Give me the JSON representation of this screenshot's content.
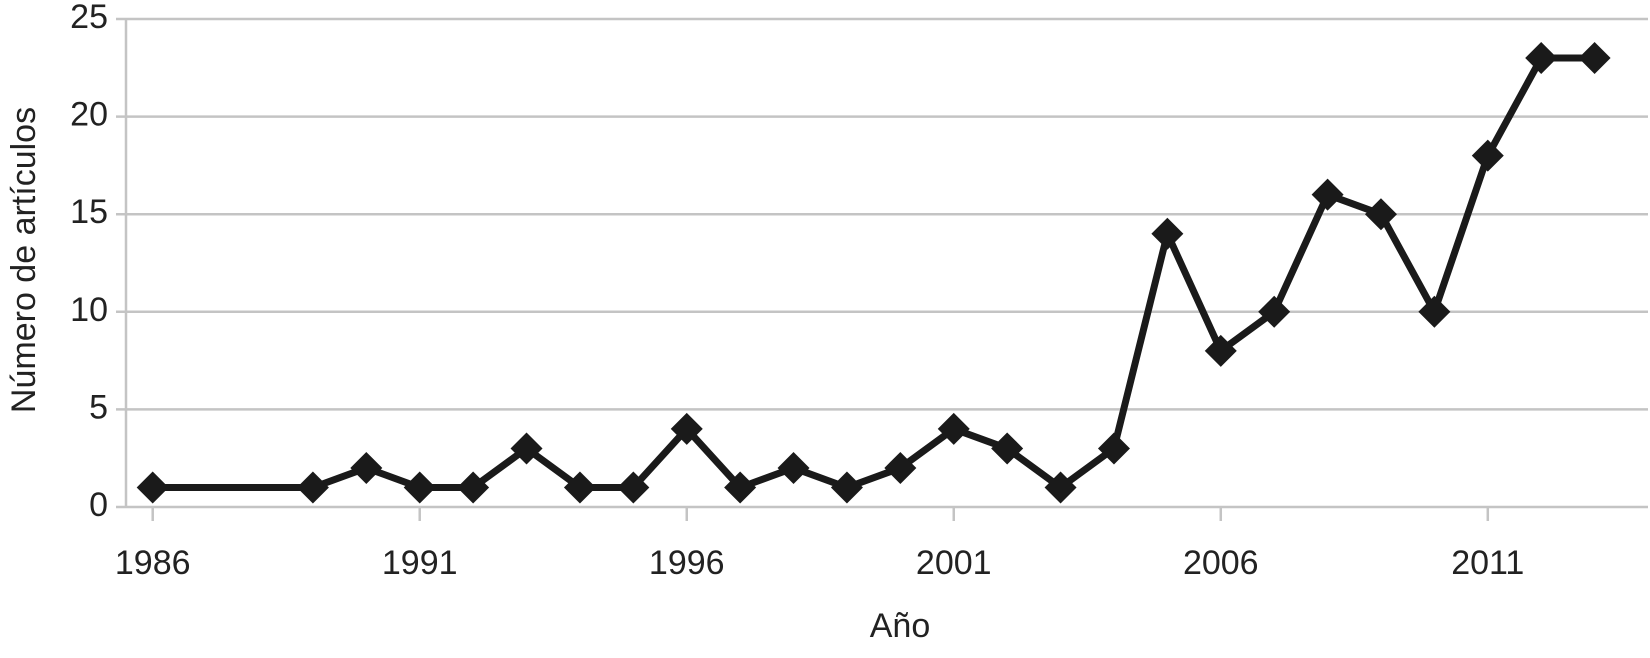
{
  "chart_data": {
    "type": "line",
    "x_label": "Año",
    "y_label": "Número de artículos",
    "x": [
      1986,
      1989,
      1990,
      1991,
      1992,
      1993,
      1994,
      1995,
      1996,
      1997,
      1998,
      1999,
      2000,
      2001,
      2002,
      2003,
      2004,
      2005,
      2006,
      2007,
      2008,
      2009,
      2010,
      2011,
      2012,
      2013
    ],
    "values": [
      1,
      1,
      2,
      1,
      1,
      3,
      1,
      1,
      4,
      1,
      2,
      1,
      2,
      4,
      3,
      1,
      3,
      14,
      8,
      10,
      16,
      15,
      10,
      18,
      23,
      23
    ],
    "color": "#1a1a1a",
    "xlim": [
      1985.5,
      2014
    ],
    "xticks": [
      1986,
      1991,
      1996,
      2001,
      2006,
      2011
    ],
    "ylim": [
      0,
      25
    ],
    "yticks": [
      0,
      5,
      10,
      15,
      20,
      25
    ],
    "grid": true
  }
}
